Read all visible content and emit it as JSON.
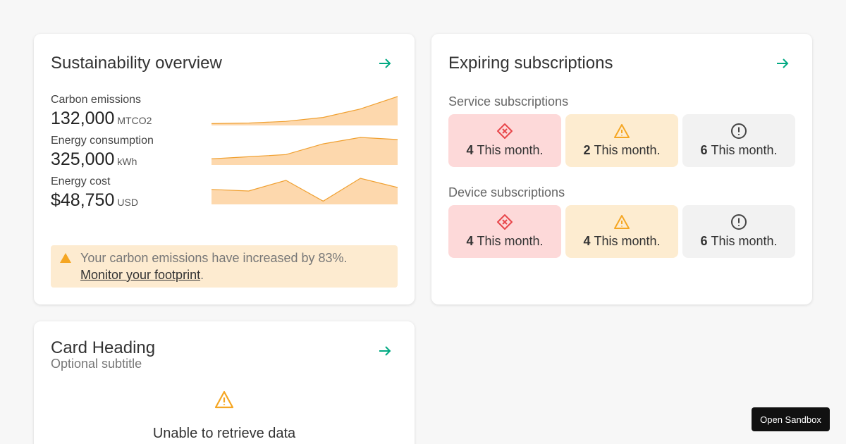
{
  "sustainability": {
    "title": "Sustainability overview",
    "metrics": [
      {
        "label": "Carbon emissions",
        "value": "132,000",
        "unit": "MTCO2",
        "trend": [
          2,
          3,
          6,
          13,
          28,
          50
        ]
      },
      {
        "label": "Energy consumption",
        "value": "325,000",
        "unit": "kWh",
        "trend": [
          10,
          14,
          18,
          38,
          50,
          46
        ]
      },
      {
        "label": "Energy cost",
        "value": "$48,750",
        "unit": "USD",
        "trend": [
          28,
          25,
          46,
          5,
          50,
          32
        ]
      }
    ],
    "alert": {
      "text": "Your carbon emissions have increased by 83%.",
      "link": "Monitor your footprint",
      "suffix": "."
    },
    "colors": {
      "spark_fill": "#fdd8ad",
      "spark_line": "#f0a030",
      "alert_bg": "#fdebd0",
      "alert_icon": "#f5a623"
    }
  },
  "subscriptions": {
    "title": "Expiring subscriptions",
    "service": {
      "label": "Service subscriptions",
      "tiles": [
        {
          "count": "4",
          "text": "This month.",
          "status": "critical"
        },
        {
          "count": "2",
          "text": "This month.",
          "status": "warning"
        },
        {
          "count": "6",
          "text": "This month.",
          "status": "info"
        }
      ]
    },
    "device": {
      "label": "Device subscriptions",
      "tiles": [
        {
          "count": "4",
          "text": "This month.",
          "status": "critical"
        },
        {
          "count": "4",
          "text": "This month.",
          "status": "warning"
        },
        {
          "count": "6",
          "text": "This month.",
          "status": "info"
        }
      ]
    },
    "colors": {
      "critical": "#e8474b",
      "warning": "#f5a623",
      "info": "#444444"
    }
  },
  "card_heading": {
    "title": "Card Heading",
    "subtitle": "Optional subtitle",
    "empty_message": "Unable to retrieve data"
  },
  "sandbox_button": "Open Sandbox",
  "accent_color": "#01a982"
}
